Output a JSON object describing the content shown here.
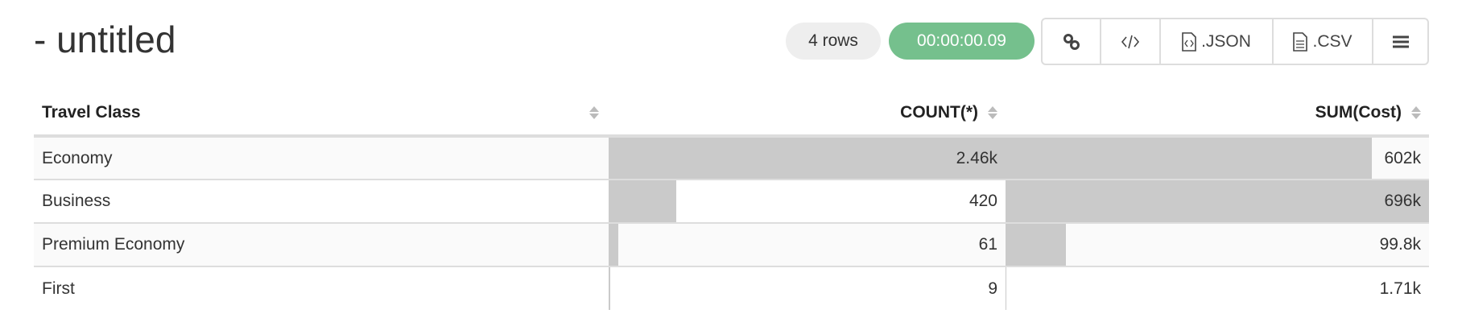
{
  "header": {
    "title": "- untitled",
    "row_count": "4 rows",
    "elapsed": "00:00:00.09",
    "elapsed_color": "#75c08d"
  },
  "toolbar": {
    "buttons": [
      {
        "icon": "link-icon",
        "label": ""
      },
      {
        "icon": "code-icon",
        "label": ""
      },
      {
        "icon": "json-file-icon",
        "label": ".JSON"
      },
      {
        "icon": "csv-file-icon",
        "label": ".CSV"
      },
      {
        "icon": "hamburger-menu-icon",
        "label": ""
      }
    ]
  },
  "table": {
    "columns": [
      "Travel Class",
      "COUNT(*)",
      "SUM(Cost)"
    ],
    "rows": [
      {
        "class": "Economy",
        "count": "2.46k",
        "count_value": 2460,
        "sum": "602k",
        "sum_value": 602000
      },
      {
        "class": "Business",
        "count": "420",
        "count_value": 420,
        "sum": "696k",
        "sum_value": 696000
      },
      {
        "class": "Premium Economy",
        "count": "61",
        "count_value": 61,
        "sum": "99.8k",
        "sum_value": 99800
      },
      {
        "class": "First",
        "count": "9",
        "count_value": 9,
        "sum": "1.71k",
        "sum_value": 1710
      }
    ]
  }
}
